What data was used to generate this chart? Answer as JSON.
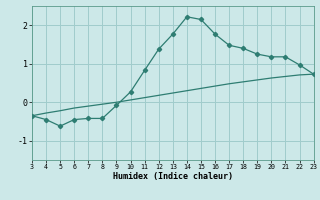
{
  "xlabel": "Humidex (Indice chaleur)",
  "ylabel": "",
  "background_color": "#cce8e8",
  "grid_color": "#a0cccc",
  "line_color": "#2e7d72",
  "xlim": [
    3,
    23
  ],
  "ylim": [
    -1.5,
    2.5
  ],
  "yticks": [
    -1,
    0,
    1,
    2
  ],
  "xticks": [
    3,
    4,
    5,
    6,
    7,
    8,
    9,
    10,
    11,
    12,
    13,
    14,
    15,
    16,
    17,
    18,
    19,
    20,
    21,
    22,
    23
  ],
  "line1_x": [
    3,
    4,
    5,
    6,
    7,
    8,
    9,
    10,
    11,
    12,
    13,
    14,
    15,
    16,
    17,
    18,
    19,
    20,
    21,
    22,
    23
  ],
  "line1_y": [
    -0.35,
    -0.45,
    -0.62,
    -0.45,
    -0.42,
    -0.42,
    -0.08,
    0.27,
    0.83,
    1.38,
    1.77,
    2.22,
    2.15,
    1.77,
    1.48,
    1.4,
    1.25,
    1.18,
    1.18,
    0.97,
    0.73
  ],
  "line2_x": [
    3,
    4,
    5,
    6,
    7,
    8,
    9,
    10,
    11,
    12,
    13,
    14,
    15,
    16,
    17,
    18,
    19,
    20,
    21,
    22,
    23
  ],
  "line2_y": [
    -0.35,
    -0.28,
    -0.22,
    -0.15,
    -0.1,
    -0.05,
    0.0,
    0.06,
    0.12,
    0.18,
    0.24,
    0.3,
    0.36,
    0.42,
    0.48,
    0.53,
    0.58,
    0.63,
    0.67,
    0.71,
    0.73
  ]
}
